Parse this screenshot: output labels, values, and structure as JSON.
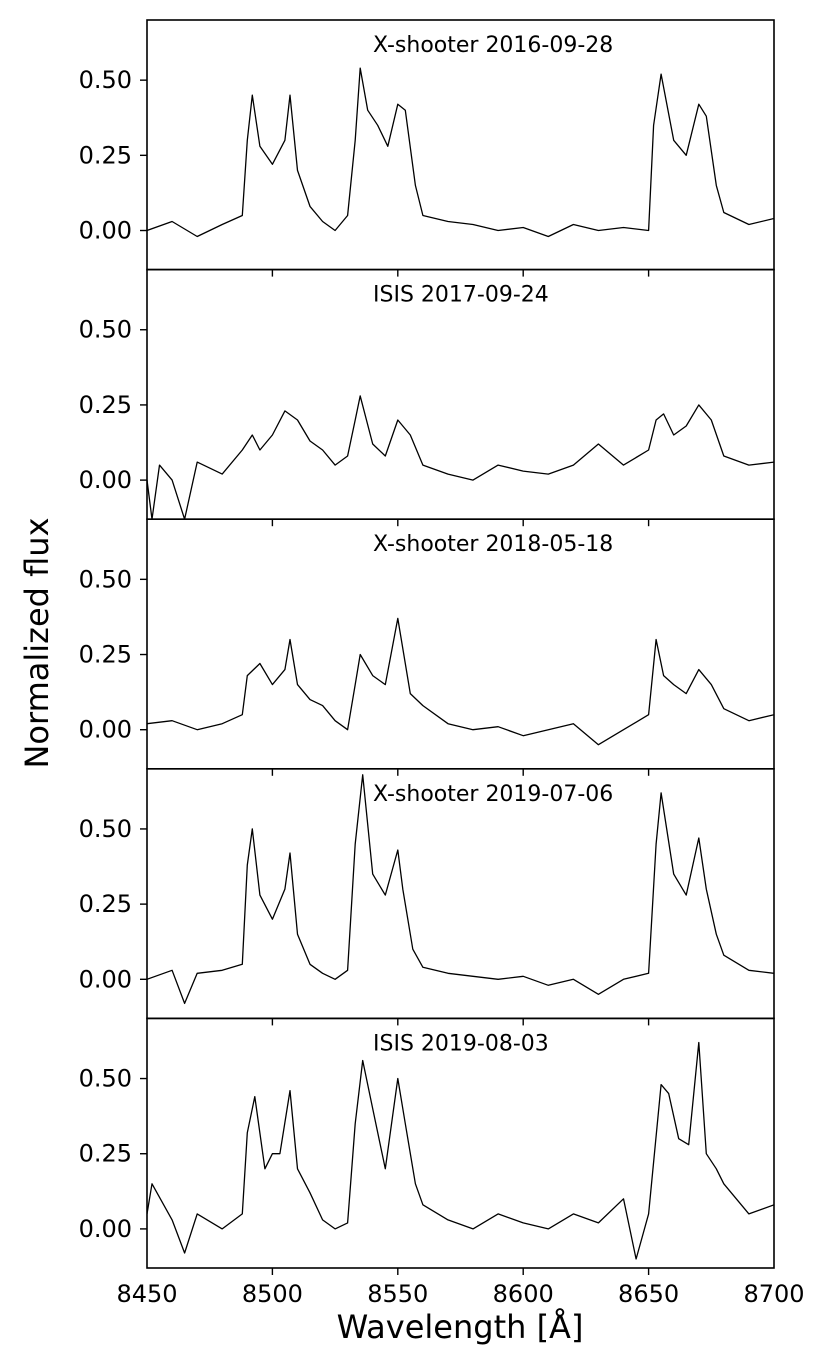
{
  "chart_data": {
    "type": "line",
    "xlabel": "Wavelength [Å]",
    "ylabel": "Normalized flux",
    "xlim": [
      8450,
      8700
    ],
    "ylim": [
      -0.13,
      0.7
    ],
    "x_ticks": [
      8450,
      8500,
      8550,
      8600,
      8650,
      8700
    ],
    "x_tick_labels": [
      "8450",
      "8500",
      "8550",
      "8600",
      "8650",
      "8700"
    ],
    "y_ticks": [
      0.0,
      0.25,
      0.5
    ],
    "y_tick_labels": [
      "0.00",
      "0.25",
      "0.50"
    ],
    "grid": false,
    "line_color": "#000000",
    "panels": [
      {
        "title": "X-shooter 2016-09-28",
        "x": [
          8450,
          8460,
          8470,
          8480,
          8488,
          8490,
          8492,
          8495,
          8500,
          8505,
          8507,
          8510,
          8515,
          8520,
          8525,
          8530,
          8533,
          8535,
          8538,
          8542,
          8546,
          8550,
          8553,
          8557,
          8560,
          8570,
          8580,
          8590,
          8600,
          8610,
          8620,
          8630,
          8640,
          8650,
          8652,
          8655,
          8660,
          8665,
          8670,
          8673,
          8677,
          8680,
          8690,
          8700
        ],
        "y": [
          0.0,
          0.03,
          -0.02,
          0.02,
          0.05,
          0.3,
          0.45,
          0.28,
          0.22,
          0.3,
          0.45,
          0.2,
          0.08,
          0.03,
          0.0,
          0.05,
          0.3,
          0.54,
          0.4,
          0.35,
          0.28,
          0.42,
          0.4,
          0.15,
          0.05,
          0.03,
          0.02,
          0.0,
          0.01,
          -0.02,
          0.02,
          0.0,
          0.01,
          0.0,
          0.35,
          0.52,
          0.3,
          0.25,
          0.42,
          0.38,
          0.15,
          0.06,
          0.02,
          0.04
        ]
      },
      {
        "title": "ISIS 2017-09-24",
        "x": [
          8450,
          8452,
          8455,
          8460,
          8465,
          8470,
          8480,
          8488,
          8492,
          8495,
          8500,
          8505,
          8510,
          8515,
          8520,
          8525,
          8530,
          8533,
          8535,
          8540,
          8545,
          8550,
          8555,
          8560,
          8570,
          8580,
          8590,
          8600,
          8610,
          8620,
          8630,
          8640,
          8650,
          8653,
          8656,
          8660,
          8665,
          8670,
          8675,
          8680,
          8690,
          8700
        ],
        "y": [
          0.0,
          -0.13,
          0.05,
          0.0,
          -0.13,
          0.06,
          0.02,
          0.1,
          0.15,
          0.1,
          0.15,
          0.23,
          0.2,
          0.13,
          0.1,
          0.05,
          0.08,
          0.2,
          0.28,
          0.12,
          0.08,
          0.2,
          0.15,
          0.05,
          0.02,
          0.0,
          0.05,
          0.03,
          0.02,
          0.05,
          0.12,
          0.05,
          0.1,
          0.2,
          0.22,
          0.15,
          0.18,
          0.25,
          0.2,
          0.08,
          0.05,
          0.06
        ]
      },
      {
        "title": "X-shooter 2018-05-18",
        "x": [
          8450,
          8460,
          8470,
          8480,
          8488,
          8490,
          8495,
          8500,
          8505,
          8507,
          8510,
          8515,
          8520,
          8525,
          8530,
          8533,
          8535,
          8540,
          8545,
          8550,
          8555,
          8560,
          8570,
          8580,
          8590,
          8600,
          8610,
          8620,
          8630,
          8640,
          8650,
          8653,
          8656,
          8660,
          8665,
          8670,
          8675,
          8680,
          8690,
          8700
        ],
        "y": [
          0.02,
          0.03,
          0.0,
          0.02,
          0.05,
          0.18,
          0.22,
          0.15,
          0.2,
          0.3,
          0.15,
          0.1,
          0.08,
          0.03,
          0.0,
          0.15,
          0.25,
          0.18,
          0.15,
          0.37,
          0.12,
          0.08,
          0.02,
          0.0,
          0.01,
          -0.02,
          0.0,
          0.02,
          -0.05,
          0.0,
          0.05,
          0.3,
          0.18,
          0.15,
          0.12,
          0.2,
          0.15,
          0.07,
          0.03,
          0.05
        ]
      },
      {
        "title": "X-shooter 2019-07-06",
        "x": [
          8450,
          8460,
          8465,
          8470,
          8480,
          8488,
          8490,
          8492,
          8495,
          8500,
          8505,
          8507,
          8510,
          8515,
          8520,
          8525,
          8530,
          8533,
          8536,
          8540,
          8545,
          8550,
          8552,
          8556,
          8560,
          8570,
          8580,
          8590,
          8600,
          8610,
          8620,
          8630,
          8640,
          8650,
          8653,
          8655,
          8660,
          8665,
          8670,
          8673,
          8677,
          8680,
          8690,
          8700
        ],
        "y": [
          0.0,
          0.03,
          -0.08,
          0.02,
          0.03,
          0.05,
          0.38,
          0.5,
          0.28,
          0.2,
          0.3,
          0.42,
          0.15,
          0.05,
          0.02,
          0.0,
          0.03,
          0.45,
          0.68,
          0.35,
          0.28,
          0.43,
          0.3,
          0.1,
          0.04,
          0.02,
          0.01,
          0.0,
          0.01,
          -0.02,
          0.0,
          -0.05,
          0.0,
          0.02,
          0.45,
          0.62,
          0.35,
          0.28,
          0.47,
          0.3,
          0.15,
          0.08,
          0.03,
          0.02
        ]
      },
      {
        "title": "ISIS 2019-08-03",
        "x": [
          8450,
          8452,
          8460,
          8465,
          8470,
          8480,
          8488,
          8490,
          8493,
          8497,
          8500,
          8503,
          8507,
          8510,
          8515,
          8520,
          8525,
          8530,
          8533,
          8536,
          8540,
          8545,
          8550,
          8553,
          8557,
          8560,
          8570,
          8580,
          8590,
          8600,
          8610,
          8620,
          8630,
          8640,
          8645,
          8650,
          8655,
          8658,
          8662,
          8666,
          8670,
          8673,
          8677,
          8680,
          8690,
          8700
        ],
        "y": [
          0.05,
          0.15,
          0.03,
          -0.08,
          0.05,
          0.0,
          0.05,
          0.32,
          0.44,
          0.2,
          0.25,
          0.25,
          0.46,
          0.2,
          0.12,
          0.03,
          0.0,
          0.02,
          0.35,
          0.56,
          0.4,
          0.2,
          0.5,
          0.35,
          0.15,
          0.08,
          0.03,
          0.0,
          0.05,
          0.02,
          0.0,
          0.05,
          0.02,
          0.1,
          -0.1,
          0.05,
          0.48,
          0.45,
          0.3,
          0.28,
          0.62,
          0.25,
          0.2,
          0.15,
          0.05,
          0.08
        ]
      }
    ]
  }
}
